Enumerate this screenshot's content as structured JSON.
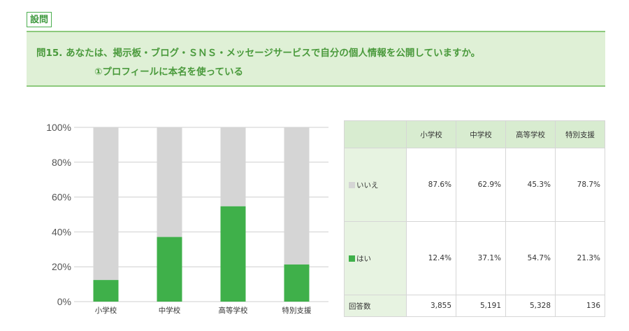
{
  "tag": "設問",
  "question": {
    "line1": "問15. あなたは、掲示板・ブログ・ＳＮＳ・メッセージサービスで自分の個人情報を公開していますか。",
    "line2": "①プロフィールに本名を使っている"
  },
  "colors": {
    "no": "#d5d5d5",
    "yes": "#3fb04a"
  },
  "chart_data": {
    "type": "bar",
    "stacked": true,
    "categories": [
      "小学校",
      "中学校",
      "高等学校",
      "特別支援"
    ],
    "series": [
      {
        "name": "はい",
        "values": [
          12.4,
          37.1,
          54.7,
          21.3
        ]
      },
      {
        "name": "いいえ",
        "values": [
          87.6,
          62.9,
          45.3,
          78.7
        ]
      }
    ],
    "ylim": [
      0,
      100
    ],
    "yticks": [
      "0%",
      "20%",
      "40%",
      "60%",
      "80%",
      "100%"
    ],
    "grid": true
  },
  "table": {
    "headers": [
      "小学校",
      "中学校",
      "高等学校",
      "特別支援"
    ],
    "rows": [
      {
        "label": "いいえ",
        "values": [
          "87.6%",
          "62.9%",
          "45.3%",
          "78.7%"
        ]
      },
      {
        "label": "はい",
        "values": [
          "12.4%",
          "37.1%",
          "54.7%",
          "21.3%"
        ]
      }
    ],
    "count_label": "回答数",
    "counts": [
      "3,855",
      "5,191",
      "5,328",
      "136"
    ]
  }
}
